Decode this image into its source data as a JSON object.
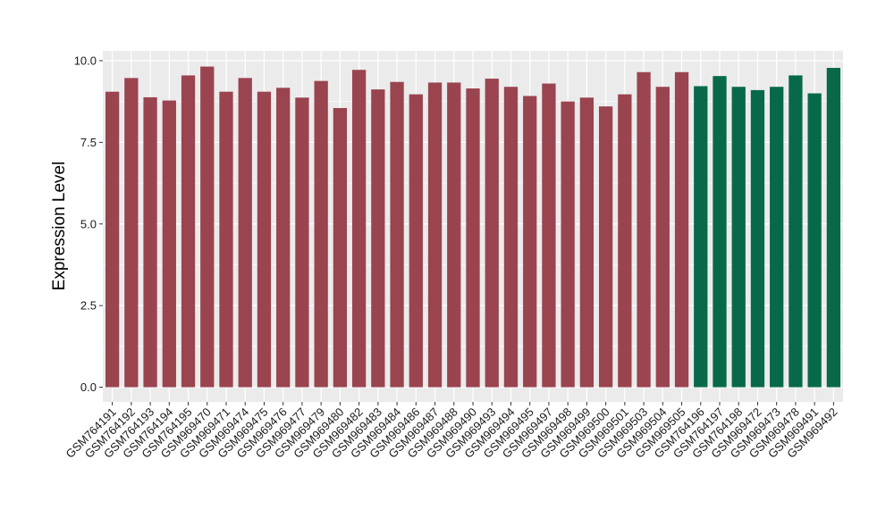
{
  "chart_data": {
    "type": "bar",
    "ylabel": "Expression Level",
    "xlabel": "",
    "ylim": [
      -0.45,
      10.3
    ],
    "yticks": [
      0.0,
      2.5,
      5.0,
      7.5,
      10.0
    ],
    "ytick_labels": [
      "0.0",
      "2.5",
      "5.0",
      "7.5",
      "10.0"
    ],
    "grid": true,
    "colors": {
      "group_a": "#9a4450",
      "group_b": "#07694a",
      "panel": "#ebebeb",
      "grid": "#ffffff"
    },
    "categories": [
      "GSM764191",
      "GSM764192",
      "GSM764193",
      "GSM764194",
      "GSM764195",
      "GSM969470",
      "GSM969471",
      "GSM969474",
      "GSM969475",
      "GSM969476",
      "GSM969477",
      "GSM969479",
      "GSM969480",
      "GSM969482",
      "GSM969483",
      "GSM969484",
      "GSM969486",
      "GSM969487",
      "GSM969488",
      "GSM969490",
      "GSM969493",
      "GSM969494",
      "GSM969495",
      "GSM969497",
      "GSM969498",
      "GSM969499",
      "GSM969500",
      "GSM969501",
      "GSM969503",
      "GSM969504",
      "GSM969505",
      "GSM764196",
      "GSM764197",
      "GSM764198",
      "GSM969472",
      "GSM969473",
      "GSM969478",
      "GSM969491",
      "GSM969492"
    ],
    "values": [
      9.05,
      9.47,
      8.88,
      8.78,
      9.55,
      9.82,
      9.05,
      9.47,
      9.05,
      9.17,
      8.87,
      9.38,
      8.55,
      9.72,
      9.12,
      9.35,
      8.97,
      9.33,
      9.33,
      9.15,
      9.45,
      9.2,
      8.92,
      9.3,
      8.75,
      8.87,
      8.6,
      8.97,
      9.65,
      9.2,
      9.65,
      9.22,
      9.53,
      9.2,
      9.1,
      9.2,
      9.55,
      9.0,
      9.78
    ],
    "groups": [
      "a",
      "a",
      "a",
      "a",
      "a",
      "a",
      "a",
      "a",
      "a",
      "a",
      "a",
      "a",
      "a",
      "a",
      "a",
      "a",
      "a",
      "a",
      "a",
      "a",
      "a",
      "a",
      "a",
      "a",
      "a",
      "a",
      "a",
      "a",
      "a",
      "a",
      "a",
      "b",
      "b",
      "b",
      "b",
      "b",
      "b",
      "b",
      "b"
    ]
  }
}
